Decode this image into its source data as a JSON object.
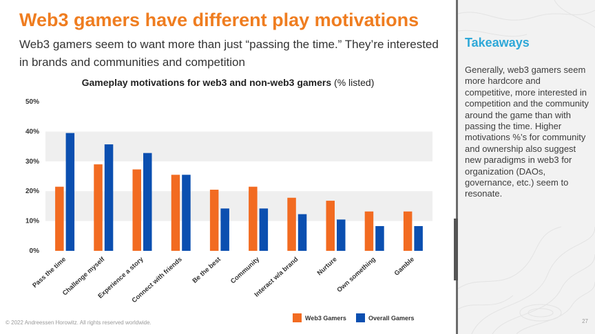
{
  "slide": {
    "title": "Web3 gamers have different play motivations",
    "subtitle": "Web3 gamers seem to want more than just “passing the time.” They’re interested in brands and communities and competition",
    "footer": "© 2022 Andreessen Horowitz. All rights reserved worldwide.",
    "page_number": "27"
  },
  "sidebar": {
    "heading": "Takeaways",
    "body": "Generally, web3 gamers seem more hardcore and competitive, more interested in competition and the community around the game than with passing the time. Higher motivations %’s for community and ownership also suggest new paradigms in web3 for organization (DAOs, governance, etc.) seem to resonate."
  },
  "chart_data": {
    "type": "bar",
    "title_bold": "Gameplay motivations for web3 and non-web3 gamers",
    "title_suffix": "(% listed)",
    "categories": [
      "Pass the time",
      "Challenge myself",
      "Experience a story",
      "Connect with friends",
      "Be the best",
      "Community",
      "Interact w/a brand",
      "Nurture",
      "Own something",
      "Gamble"
    ],
    "series": [
      {
        "name": "Web3 Gamers",
        "color": "#f26b21",
        "values": [
          21.5,
          29,
          27.3,
          25.5,
          20.5,
          21.5,
          17.8,
          16.8,
          13.2,
          13.2
        ]
      },
      {
        "name": "Overall Gamers",
        "color": "#0b4fb0",
        "values": [
          39.5,
          35.7,
          32.8,
          25.5,
          14.2,
          14.2,
          12.3,
          10.5,
          8.3,
          8.3
        ]
      }
    ],
    "yticks": [
      "0%",
      "10%",
      "20%",
      "30%",
      "40%",
      "50%"
    ],
    "ylim": [
      0,
      50
    ],
    "grid": "alternating bands",
    "legend_position": "bottom-right"
  }
}
